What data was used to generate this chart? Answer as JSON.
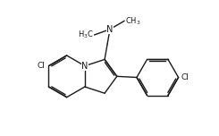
{
  "bg_color": "#ffffff",
  "line_color": "#1a1a1a",
  "text_color": "#1a1a1a",
  "line_width": 1.0,
  "font_size": 6.5,
  "figsize": [
    2.45,
    1.52
  ],
  "dpi": 100,
  "xlim": [
    -1.0,
    9.5
  ],
  "ylim": [
    -0.5,
    5.5
  ]
}
